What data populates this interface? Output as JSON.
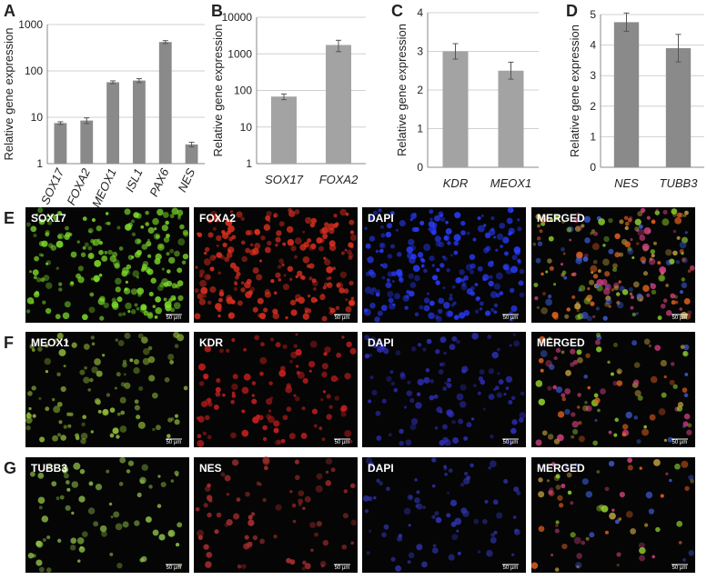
{
  "chart_data": [
    {
      "type": "bar",
      "panel": "A",
      "y_label": "Relative gene expression",
      "log_scale": true,
      "grid": true,
      "color": "#8a8a8a",
      "categories": [
        "SOX17",
        "FOXA2",
        "MEOX1",
        "ISL1",
        "PAX6",
        "NES"
      ],
      "values": [
        7.5,
        8.5,
        57,
        62,
        420,
        2.6
      ],
      "errors": [
        0.5,
        1.2,
        4,
        6,
        30,
        0.3
      ],
      "ylim": [
        1,
        1000
      ],
      "yticks": [
        1,
        10,
        100,
        1000
      ]
    },
    {
      "type": "bar",
      "panel": "B",
      "y_label": "Relative gene expression",
      "log_scale": true,
      "grid": true,
      "color": "#a3a3a3",
      "categories": [
        "SOX17",
        "FOXA2"
      ],
      "values": [
        68,
        1750
      ],
      "errors": [
        12,
        600
      ],
      "ylim": [
        1,
        10000
      ],
      "yticks": [
        1,
        10,
        100,
        1000,
        10000
      ]
    },
    {
      "type": "bar",
      "panel": "C",
      "y_label": "Relative gene expression",
      "log_scale": false,
      "grid": true,
      "color": "#a3a3a3",
      "categories": [
        "KDR",
        "MEOX1"
      ],
      "values": [
        3.0,
        2.5
      ],
      "errors": [
        0.2,
        0.22
      ],
      "ylim": [
        0,
        4
      ],
      "yticks": [
        0,
        1,
        2,
        3,
        4
      ]
    },
    {
      "type": "bar",
      "panel": "D",
      "y_label": "Relative gene expression",
      "log_scale": false,
      "grid": true,
      "color": "#8a8a8a",
      "categories": [
        "NES",
        "TUBB3"
      ],
      "values": [
        4.75,
        3.9
      ],
      "errors": [
        0.3,
        0.45
      ],
      "ylim": [
        0,
        5
      ],
      "yticks": [
        0,
        1,
        2,
        3,
        4,
        5
      ]
    }
  ],
  "image_panels": {
    "scale_bar": "50 µm",
    "rows": [
      {
        "letter": "E",
        "labels": [
          "SOX17",
          "FOXA2",
          "DAPI",
          "MERGED"
        ]
      },
      {
        "letter": "F",
        "labels": [
          "MEOX1",
          "KDR",
          "DAPI",
          "MERGED"
        ]
      },
      {
        "letter": "G",
        "labels": [
          "TUBB3",
          "NES",
          "DAPI",
          "MERGED"
        ]
      }
    ]
  }
}
